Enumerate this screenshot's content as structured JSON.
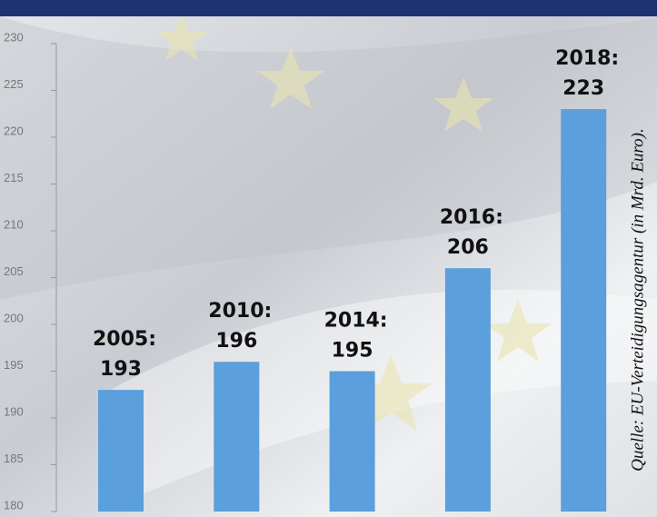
{
  "chart_data": {
    "type": "bar",
    "source": "Quelle: EU-Verteidigungsagentur (in Mrd. Euro).",
    "categories": [
      "2005:",
      "2010:",
      "2014:",
      "2016:",
      "2018:"
    ],
    "values": [
      193,
      196,
      195,
      206,
      223
    ],
    "color": "#5b9fdc",
    "ylim": [
      180,
      230
    ],
    "yticks": [
      180,
      185,
      190,
      195,
      200,
      205,
      210,
      215,
      220,
      225,
      230
    ]
  }
}
